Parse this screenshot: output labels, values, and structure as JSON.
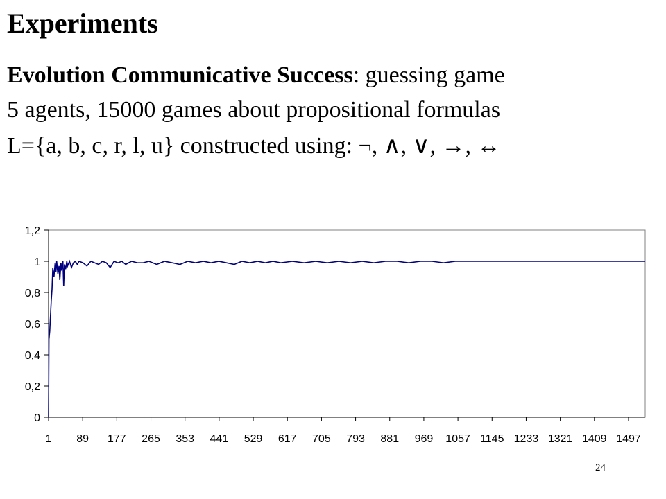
{
  "slide": {
    "title": "Experiments",
    "line1_bold": "Evolution Communicative Success",
    "line1_rest": ": guessing game",
    "line2": "5 agents, 15000 games about propositional formulas",
    "line3": "L={a, b, c, r, l, u} constructed using: ¬, ∧, ∨, →, ↔",
    "page_number": "24"
  },
  "chart_data": {
    "type": "line",
    "title": "",
    "xlabel": "",
    "ylabel": "",
    "x_range": [
      1,
      1540
    ],
    "ylim": [
      0,
      1.2
    ],
    "y_ticks": [
      "0",
      "0,2",
      "0,4",
      "0,6",
      "0,8",
      "1",
      "1,2"
    ],
    "y_tick_values": [
      0,
      0.2,
      0.4,
      0.6,
      0.8,
      1.0,
      1.2
    ],
    "x_ticks": [
      "1",
      "89",
      "177",
      "265",
      "353",
      "441",
      "529",
      "617",
      "705",
      "793",
      "881",
      "969",
      "1057",
      "1145",
      "1233",
      "1321",
      "1409",
      "1497"
    ],
    "x_tick_values": [
      1,
      89,
      177,
      265,
      353,
      441,
      529,
      617,
      705,
      793,
      881,
      969,
      1057,
      1145,
      1233,
      1321,
      1409,
      1497
    ],
    "legend": "none",
    "grid": false,
    "series": [
      {
        "color": "#000080",
        "x": [
          1,
          2,
          4,
          6,
          8,
          10,
          12,
          15,
          18,
          20,
          22,
          25,
          28,
          30,
          33,
          35,
          38,
          40,
          42,
          45,
          48,
          50,
          55,
          60,
          65,
          70,
          75,
          80,
          90,
          100,
          110,
          120,
          130,
          140,
          150,
          160,
          170,
          180,
          190,
          200,
          215,
          230,
          245,
          260,
          280,
          300,
          320,
          340,
          360,
          380,
          400,
          420,
          440,
          460,
          480,
          500,
          520,
          540,
          560,
          580,
          600,
          630,
          660,
          690,
          720,
          750,
          780,
          810,
          840,
          870,
          900,
          930,
          960,
          990,
          1020,
          1050,
          1070,
          1100,
          1200,
          1300,
          1400,
          1540
        ],
        "y": [
          0,
          0.5,
          0.55,
          0.65,
          0.75,
          0.82,
          0.96,
          0.9,
          0.99,
          0.93,
          1.0,
          0.92,
          0.97,
          0.88,
          0.99,
          0.94,
          1.0,
          0.84,
          0.98,
          0.95,
          1.0,
          0.97,
          1.0,
          0.96,
          0.99,
          1.0,
          0.98,
          1.0,
          0.99,
          0.97,
          1.0,
          0.99,
          0.98,
          1.0,
          0.99,
          0.96,
          1.0,
          0.99,
          1.0,
          0.98,
          1.0,
          0.99,
          0.99,
          1.0,
          0.98,
          1.0,
          0.99,
          0.98,
          1.0,
          0.99,
          1.0,
          0.99,
          1.0,
          0.99,
          0.98,
          1.0,
          0.99,
          1.0,
          0.99,
          1.0,
          0.99,
          1.0,
          0.99,
          1.0,
          0.99,
          1.0,
          0.99,
          1.0,
          0.99,
          1.0,
          1.0,
          0.99,
          1.0,
          1.0,
          0.99,
          1.0,
          1.0,
          1.0,
          1.0,
          1.0,
          1.0,
          1.0
        ]
      }
    ]
  }
}
